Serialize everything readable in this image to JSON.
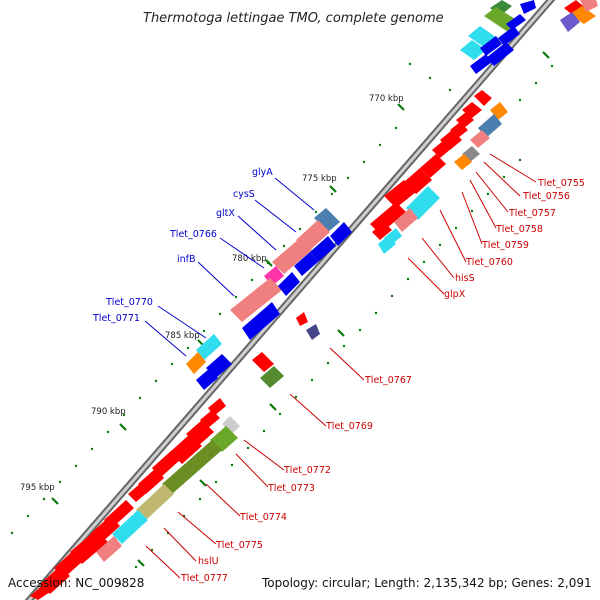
{
  "title": "Thermotoga lettingae TMO, complete genome",
  "footer": {
    "accession": "Accession: NC_009828",
    "topology": "Topology: circular; Length: 2,135,342 bp; Genes: 2,091"
  },
  "scale_labels": [
    "770 kbp",
    "775 kbp",
    "780 kbp",
    "785 kbp",
    "790 kbp",
    "795 kbp"
  ],
  "blue_labels": [
    "glyA",
    "cysS",
    "gltX",
    "Tlet_0766",
    "infB",
    "Tlet_0770",
    "Tlet_0771"
  ],
  "red_labels": [
    "Tlet_0755",
    "Tlet_0756",
    "Tlet_0757",
    "Tlet_0758",
    "Tlet_0759",
    "Tlet_0760",
    "hisS",
    "glpX",
    "Tlet_0767",
    "Tlet_0769",
    "Tlet_0772",
    "Tlet_0773",
    "Tlet_0774",
    "Tlet_0775",
    "hslU",
    "Tlet_0777"
  ],
  "colors": {
    "backbone": "#888888",
    "forward_gene": "#ff0000",
    "reverse_gene": "#0000ee",
    "blue_label": "#0000cc",
    "red_label": "#cc0000",
    "tick": "#006600"
  }
}
